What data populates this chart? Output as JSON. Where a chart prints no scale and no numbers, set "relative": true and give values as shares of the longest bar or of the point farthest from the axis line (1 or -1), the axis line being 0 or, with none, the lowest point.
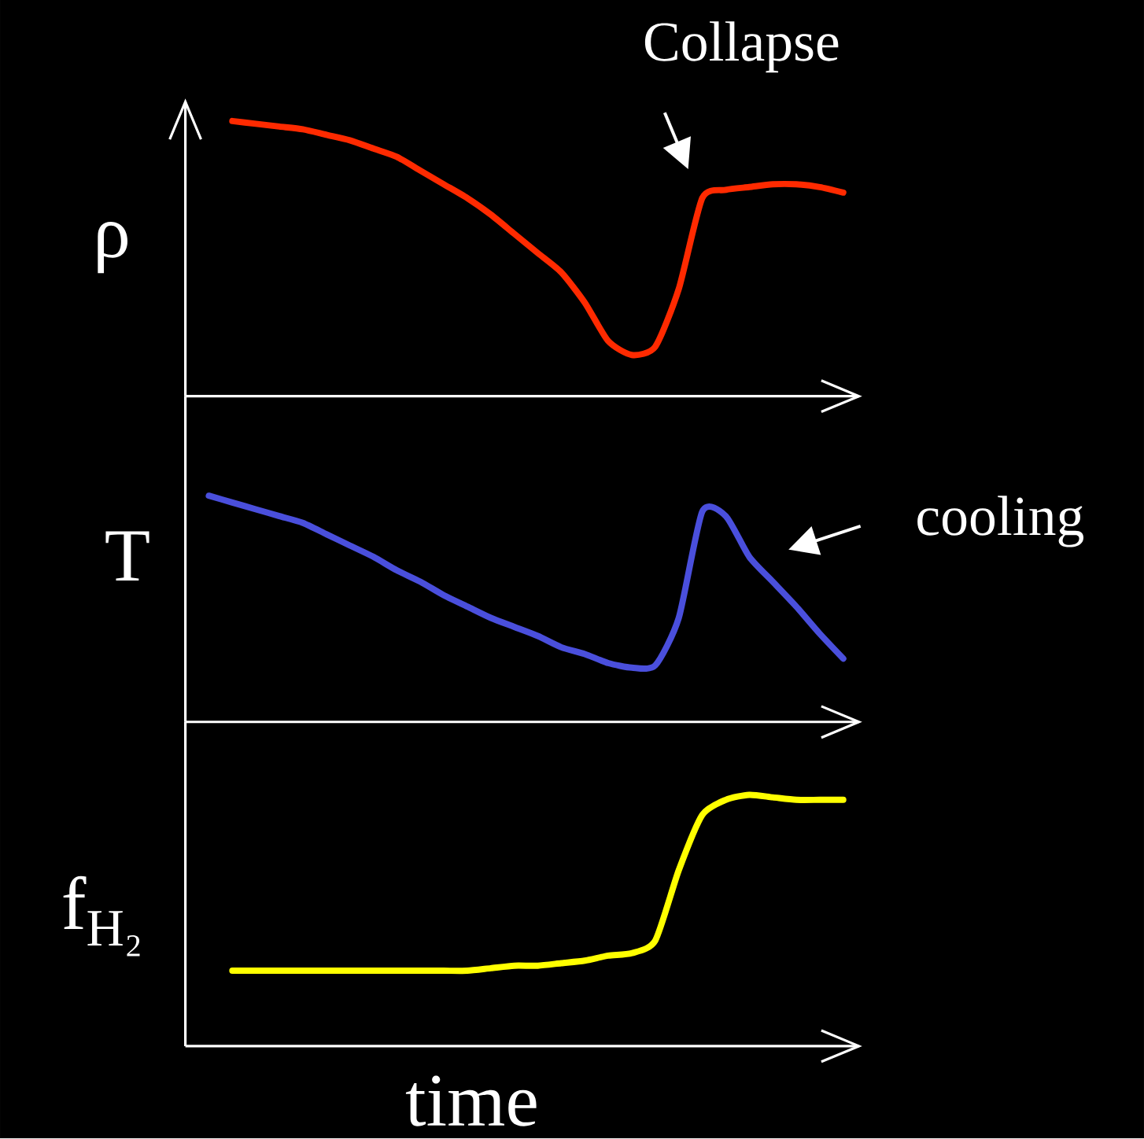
{
  "chart_data": [
    {
      "type": "line",
      "relative": true,
      "ylabel": "ρ",
      "annotations": [
        "Collapse"
      ],
      "tick_labels": false,
      "categories": [
        null,
        null,
        null,
        null,
        null,
        null,
        null,
        null,
        null,
        null,
        null,
        null,
        null,
        null,
        null,
        null,
        null,
        null,
        null,
        null,
        null,
        null,
        null,
        null,
        null,
        null,
        null,
        null
      ],
      "series": [
        {
          "color": "#ff2a00",
          "values": [
            null,
            1.0,
            0.99,
            0.98,
            0.97,
            0.95,
            0.93,
            0.9,
            0.87,
            0.82,
            0.77,
            0.72,
            0.66,
            0.59,
            0.52,
            0.45,
            0.34,
            0.2,
            0.15,
            0.18,
            0.39,
            0.72,
            0.75,
            0.76,
            0.77,
            0.77,
            0.76,
            0.74
          ]
        }
      ]
    },
    {
      "type": "line",
      "relative": true,
      "ylabel": "T",
      "annotations": [
        "cooling"
      ],
      "tick_labels": false,
      "categories": [
        null,
        null,
        null,
        null,
        null,
        null,
        null,
        null,
        null,
        null,
        null,
        null,
        null,
        null,
        null,
        null,
        null,
        null,
        null,
        null,
        null,
        null,
        null,
        null,
        null,
        null,
        null,
        null
      ],
      "series": [
        {
          "color": "#4a4fdc",
          "values": [
            1.0,
            0.97,
            0.94,
            0.91,
            0.88,
            0.83,
            0.78,
            0.73,
            0.67,
            0.62,
            0.56,
            0.51,
            0.46,
            0.42,
            0.38,
            0.33,
            0.3,
            0.26,
            0.24,
            0.25,
            0.46,
            0.93,
            0.91,
            0.73,
            0.62,
            0.51,
            0.39,
            0.28
          ]
        }
      ]
    },
    {
      "type": "line",
      "relative": true,
      "ylabel": "f$_{H₂}$",
      "xlabel": "time",
      "tick_labels": false,
      "categories": [
        null,
        null,
        null,
        null,
        null,
        null,
        null,
        null,
        null,
        null,
        null,
        null,
        null,
        null,
        null,
        null,
        null,
        null,
        null,
        null,
        null,
        null,
        null,
        null,
        null,
        null,
        null,
        null
      ],
      "series": [
        {
          "color": "#ffff00",
          "values": [
            null,
            0.3,
            0.3,
            0.3,
            0.3,
            0.3,
            0.3,
            0.3,
            0.3,
            0.3,
            0.3,
            0.3,
            0.31,
            0.32,
            0.32,
            0.33,
            0.34,
            0.36,
            0.37,
            0.42,
            0.7,
            0.92,
            0.98,
            1.0,
            0.99,
            0.98,
            0.98,
            0.98
          ]
        }
      ]
    }
  ]
}
